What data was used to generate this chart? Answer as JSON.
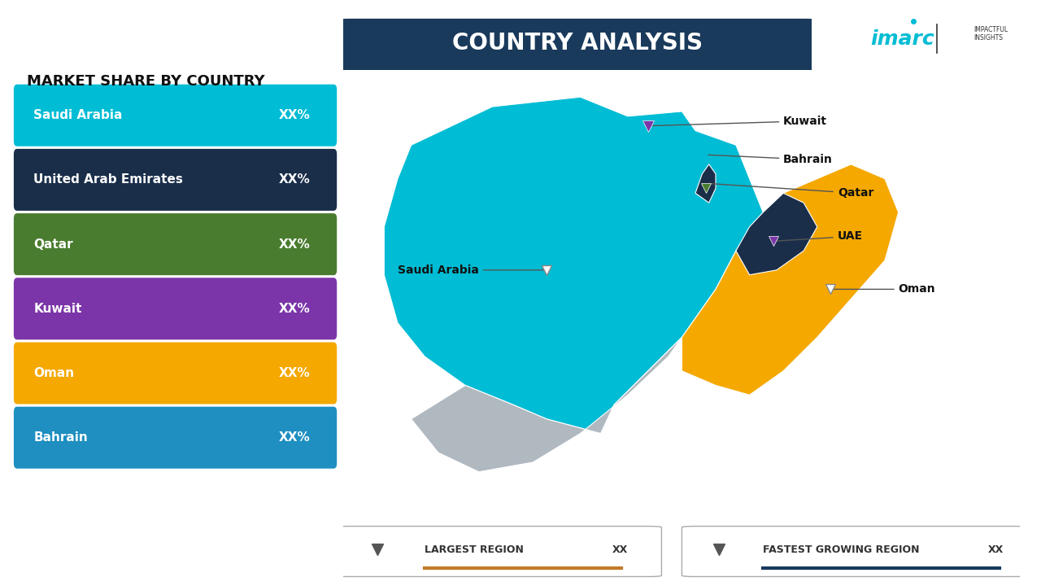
{
  "title": "COUNTRY ANALYSIS",
  "subtitle": "MARKET SHARE BY COUNTRY",
  "background_color": "#ffffff",
  "title_box_color": "#1a3a5c",
  "title_text_color": "#ffffff",
  "title_fontsize": 22,
  "bars": [
    {
      "label": "Saudi Arabia",
      "value": "XX%",
      "color": "#00bcd4"
    },
    {
      "label": "United Arab Emirates",
      "value": "XX%",
      "color": "#1a2e4a"
    },
    {
      "label": "Qatar",
      "value": "XX%",
      "color": "#4a7c2f"
    },
    {
      "label": "Kuwait",
      "value": "XX%",
      "color": "#7b35a8"
    },
    {
      "label": "Oman",
      "value": "XX%",
      "color": "#f5a800"
    },
    {
      "label": "Bahrain",
      "value": "XX%",
      "color": "#1e8fc0"
    }
  ],
  "legend_largest_color": "#c47a2a",
  "legend_fastest_color": "#1a3a5c",
  "map_colors": {
    "saudi_arabia": "#00bcd4",
    "uae": "#1a2e4a",
    "qatar": "#1a2e4a",
    "oman": "#f5a800",
    "bahrain": "#00bcd4",
    "kuwait": "#00bcd4",
    "yemen": "#b0b8c0",
    "other": "#b0b8c0"
  },
  "imarc_color": "#00bcd4",
  "pin_colors": {
    "kuwait": "#7b35a8",
    "bahrain": "#00bcd4",
    "qatar_uae": "#4a7c2f",
    "uae_pin": "#7b35a8",
    "saudi": "#ffffff",
    "oman": "#ffffff"
  }
}
